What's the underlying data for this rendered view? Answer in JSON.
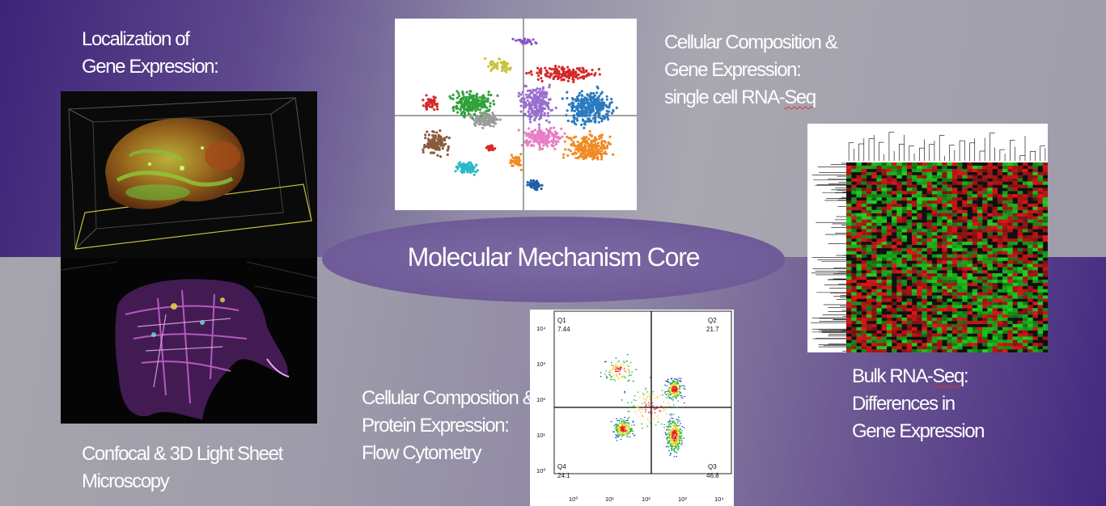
{
  "labels": {
    "localization": "Localization of\nGene Expression:",
    "scrnaseq_prefix": "Cellular Composition &\nGene Expression:\nsingle cell RNA-",
    "scrnaseq_suffix": "Seq",
    "core_title": "Molecular Mechanism Core",
    "confocal": "Confocal & 3D Light Sheet\nMicroscopy",
    "flow": "Cellular Composition &\nProtein Expression:\nFlow Cytometry",
    "bulk_prefix": "Bulk RNA-",
    "bulk_seq": "Seq",
    "bulk_rest": ":\nDifferences in\nGene Expression"
  },
  "flow_plot": {
    "q1_label": "Q1",
    "q1_value": "7.44",
    "q2_label": "Q2",
    "q2_value": "21.7",
    "q3_label": "Q3",
    "q3_value": "46.8",
    "q4_label": "Q4",
    "q4_value": "24.1",
    "y_ticks": [
      "10⁴",
      "10³",
      "10²",
      "10¹",
      "10⁰"
    ],
    "x_ticks": [
      "10⁰",
      "10¹",
      "10²",
      "10³",
      "10⁴"
    ]
  },
  "colors": {
    "bg_purple": "#3e2378",
    "bg_gray": "#a9a8b1",
    "ellipse": "#705d9a",
    "heatmap_red": "#e01818",
    "heatmap_green": "#1fd41f"
  }
}
